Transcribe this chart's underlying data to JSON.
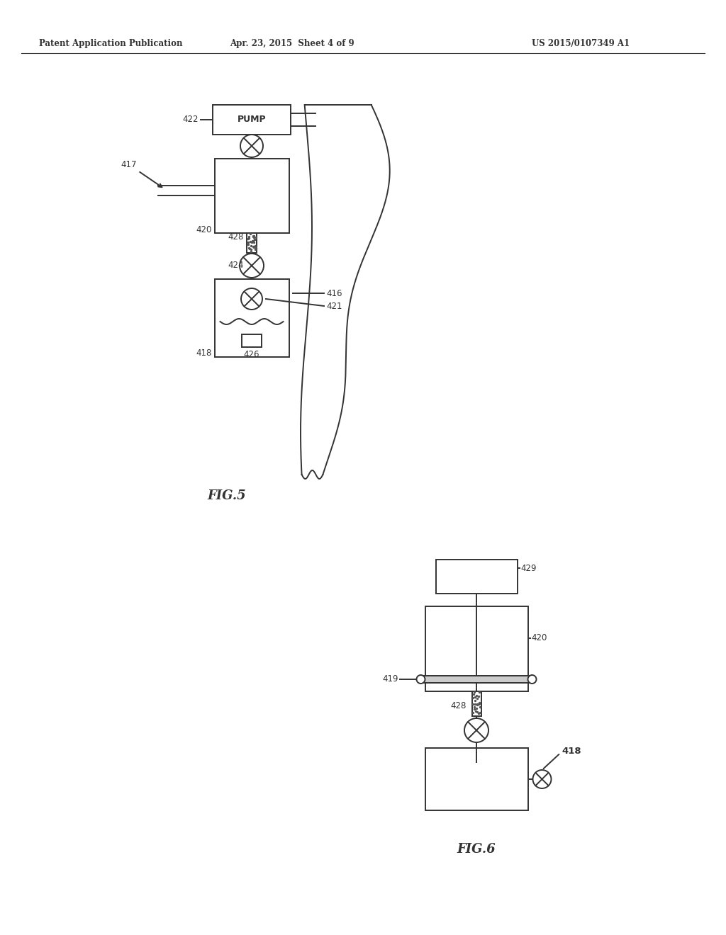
{
  "background_color": "#ffffff",
  "header_left": "Patent Application Publication",
  "header_center": "Apr. 23, 2015  Sheet 4 of 9",
  "header_right": "US 2015/0107349 A1",
  "fig5_label": "FIG.5",
  "fig6_label": "FIG.6",
  "line_color": "#333333",
  "line_width": 1.4,
  "label_fontsize": 8.5,
  "header_fontsize": 8.5,
  "figlabel_fontsize": 13
}
